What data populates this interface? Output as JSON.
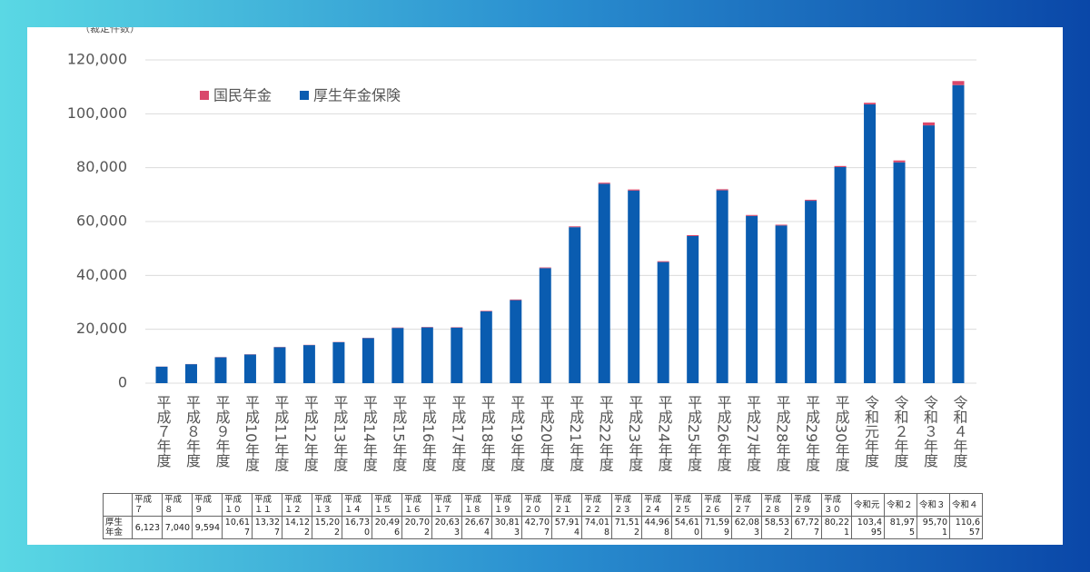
{
  "chart_data": {
    "type": "stacked_bar",
    "y_label": "（裁定件数）",
    "categories": [
      "平成７年度",
      "平成８年度",
      "平成９年度",
      "平成10年度",
      "平成11年度",
      "平成12年度",
      "平成13年度",
      "平成14年度",
      "平成15年度",
      "平成16年度",
      "平成17年度",
      "平成18年度",
      "平成19年度",
      "平成20年度",
      "平成21年度",
      "平成22年度",
      "平成23年度",
      "平成24年度",
      "平成25年度",
      "平成26年度",
      "平成27年度",
      "平成28年度",
      "平成29年度",
      "平成30年度",
      "令和元年度",
      "令和２年度",
      "令和３年度",
      "令和４年度"
    ],
    "series": [
      {
        "name": "国民年金",
        "color": "#d9486b",
        "values": [
          50,
          60,
          80,
          90,
          100,
          100,
          100,
          100,
          150,
          150,
          150,
          200,
          250,
          250,
          300,
          400,
          400,
          300,
          350,
          400,
          350,
          300,
          350,
          400,
          600,
          700,
          1100,
          1500
        ]
      },
      {
        "name": "厚生年金保険",
        "color": "#0a5cb0",
        "values": [
          6123,
          7040,
          9594,
          10617,
          13327,
          14122,
          15202,
          16730,
          20496,
          20702,
          20633,
          26674,
          30813,
          42707,
          57914,
          74018,
          71512,
          44968,
          54610,
          71599,
          62083,
          58532,
          67727,
          80221,
          103495,
          81975,
          95701,
          110657
        ],
        "value_labels": [
          "6,123",
          "7,040",
          "9,594",
          "10,617",
          "13,327",
          "14,122",
          "15,202",
          "16,730",
          "20,496",
          "20,702",
          "20,633",
          "26,674",
          "30,813",
          "42,707",
          "57,914",
          "74,018",
          "71,512",
          "44,968",
          "54,610",
          "71,599",
          "62,083",
          "58,532",
          "67,727",
          "80,221",
          "103,495",
          "81,975",
          "95,701",
          "110,657"
        ]
      }
    ],
    "ylim": [
      0,
      120000
    ],
    "yticks": [
      0,
      {
        "value": 20000,
        "label": "20,000"
      },
      {
        "value": 40000,
        "label": "40,000"
      },
      {
        "value": 60000,
        "label": "60,000"
      },
      {
        "value": 80000,
        "label": "80,000"
      },
      {
        "value": 100000,
        "label": "100,000"
      },
      {
        "value": 120000,
        "label": "120,000"
      }
    ],
    "grid": true,
    "legend": "top-left"
  },
  "table": {
    "header": [
      "平成７",
      "平成８",
      "平成９",
      "平成１０",
      "平成１１",
      "平成１２",
      "平成１３",
      "平成１４",
      "平成１５",
      "平成１６",
      "平成１７",
      "平成１８",
      "平成１９",
      "平成２０",
      "平成２１",
      "平成２２",
      "平成２３",
      "平成２４",
      "平成２５",
      "平成２６",
      "平成２７",
      "平成２８",
      "平成２９",
      "平成３０",
      "令和元",
      "令和２",
      "令和３",
      "令和４"
    ],
    "row_label": "厚生年金"
  }
}
